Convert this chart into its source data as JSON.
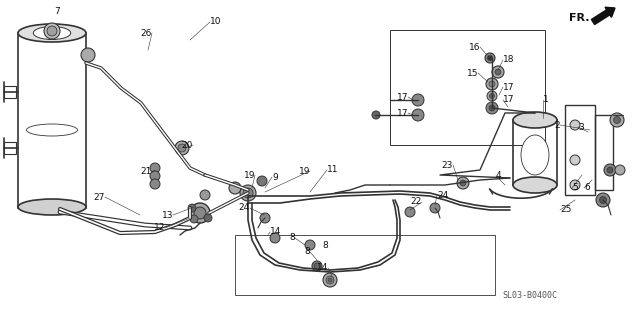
{
  "bg_color": "#ffffff",
  "fig_width": 6.4,
  "fig_height": 3.17,
  "dpi": 100,
  "diagram_code": "SL03-B0400C",
  "fr_label": "FR.",
  "line_color": "#333333",
  "text_color": "#111111",
  "font_size": 6.5,
  "small_font": 6.0
}
